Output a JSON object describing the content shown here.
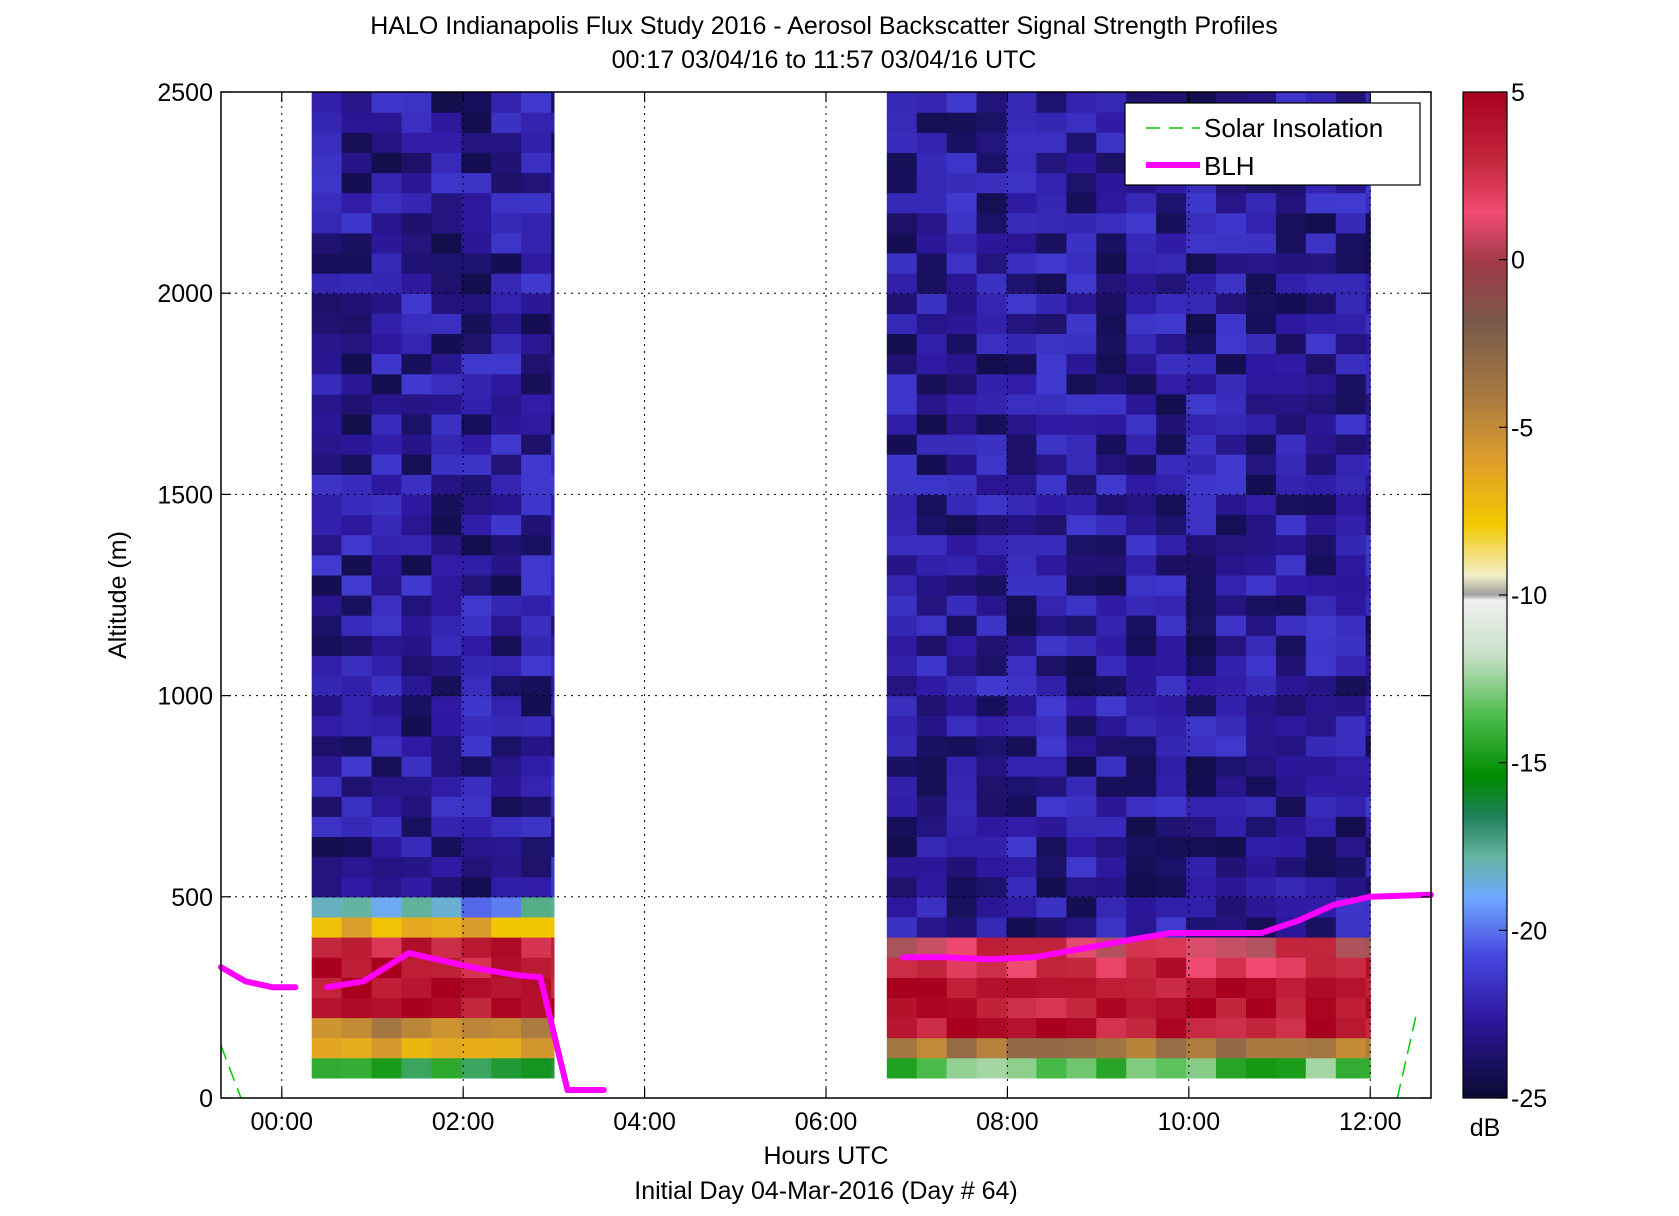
{
  "chart_data": {
    "type": "heatmap",
    "title": "HALO Indianapolis Flux Study 2016 - Aerosol Backscatter Signal Strength Profiles",
    "subtitle": "00:17 03/04/16 to 11:57 03/04/16  UTC",
    "xlabel": "Hours UTC",
    "xlabel2": "Initial Day 04-Mar-2016 (Day # 64)",
    "ylabel": "Altitude (m)",
    "xlim": [
      -0.67,
      12.67
    ],
    "ylim": [
      0,
      2500
    ],
    "x_ticks": [
      0,
      2,
      4,
      6,
      8,
      10,
      12
    ],
    "x_tick_labels": [
      "00:00",
      "02:00",
      "04:00",
      "06:00",
      "08:00",
      "10:00",
      "12:00"
    ],
    "y_ticks": [
      0,
      500,
      1000,
      1500,
      2000,
      2500
    ],
    "y_tick_labels": [
      "0",
      "500",
      "1000",
      "1500",
      "2000",
      "2500"
    ],
    "grid": true,
    "colorbar": {
      "label": "dB",
      "range": [
        -25,
        5
      ],
      "ticks": [
        5,
        0,
        -5,
        -10,
        -15,
        -20,
        -25
      ],
      "tick_labels": [
        "5",
        "0",
        "-5",
        "-10",
        "-15",
        "-20",
        "-25"
      ]
    },
    "data_blocks": [
      {
        "x_start": 0.33,
        "x_end": 3.0,
        "y_start": 50,
        "y_end": 2500,
        "low_levels": [
          {
            "top": 100,
            "dB": -16
          },
          {
            "top": 150,
            "dB": -6
          },
          {
            "top": 200,
            "dB": -4
          },
          {
            "top": 380,
            "dB": 4
          },
          {
            "top": 430,
            "dB": -7
          },
          {
            "top": 480,
            "dB": -19
          }
        ],
        "upper_dB": -23
      },
      {
        "x_start": 6.67,
        "x_end": 12.0,
        "y_start": 50,
        "y_end": 2500,
        "low_levels": [
          {
            "top": 100,
            "dB": -14
          },
          {
            "top": 150,
            "dB": -3
          },
          {
            "top": 280,
            "dB": 4
          },
          {
            "top": 330,
            "dB": 3
          },
          {
            "top": 380,
            "dB": 2
          }
        ],
        "upper_dB": -23
      }
    ],
    "series": [
      {
        "name": "BLH",
        "color": "#ff00ff",
        "x": [
          -0.67,
          -0.4,
          -0.1,
          0.15,
          0.5,
          0.9,
          1.4,
          1.8,
          2.2,
          2.6,
          2.85,
          3.15,
          3.35,
          3.55
        ],
        "y": [
          325,
          290,
          275,
          275,
          275,
          290,
          360,
          340,
          320,
          305,
          300,
          20,
          20,
          20
        ],
        "segments": [
          [
            -0.67,
            0.15
          ],
          [
            0.5,
            2.85
          ],
          [
            2.85,
            3.55
          ]
        ]
      },
      {
        "name": "BLH",
        "color": "#ff00ff",
        "x": [
          6.85,
          7.3,
          7.8,
          8.3,
          8.8,
          9.4,
          9.8,
          10.3,
          10.8,
          11.2,
          11.6,
          12.0,
          12.67
        ],
        "y": [
          350,
          350,
          345,
          350,
          370,
          395,
          410,
          410,
          410,
          440,
          480,
          500,
          505
        ]
      },
      {
        "name": "Solar Insolation",
        "color": "#00cc00",
        "x": [
          -0.67,
          -0.45
        ],
        "y": [
          130,
          0
        ]
      },
      {
        "name": "Solar Insolation",
        "color": "#00cc00",
        "x": [
          12.3,
          12.5
        ],
        "y": [
          0,
          200
        ]
      }
    ],
    "legend": {
      "placement": "top-right",
      "entries": [
        "Solar Insolation",
        "BLH"
      ]
    }
  }
}
